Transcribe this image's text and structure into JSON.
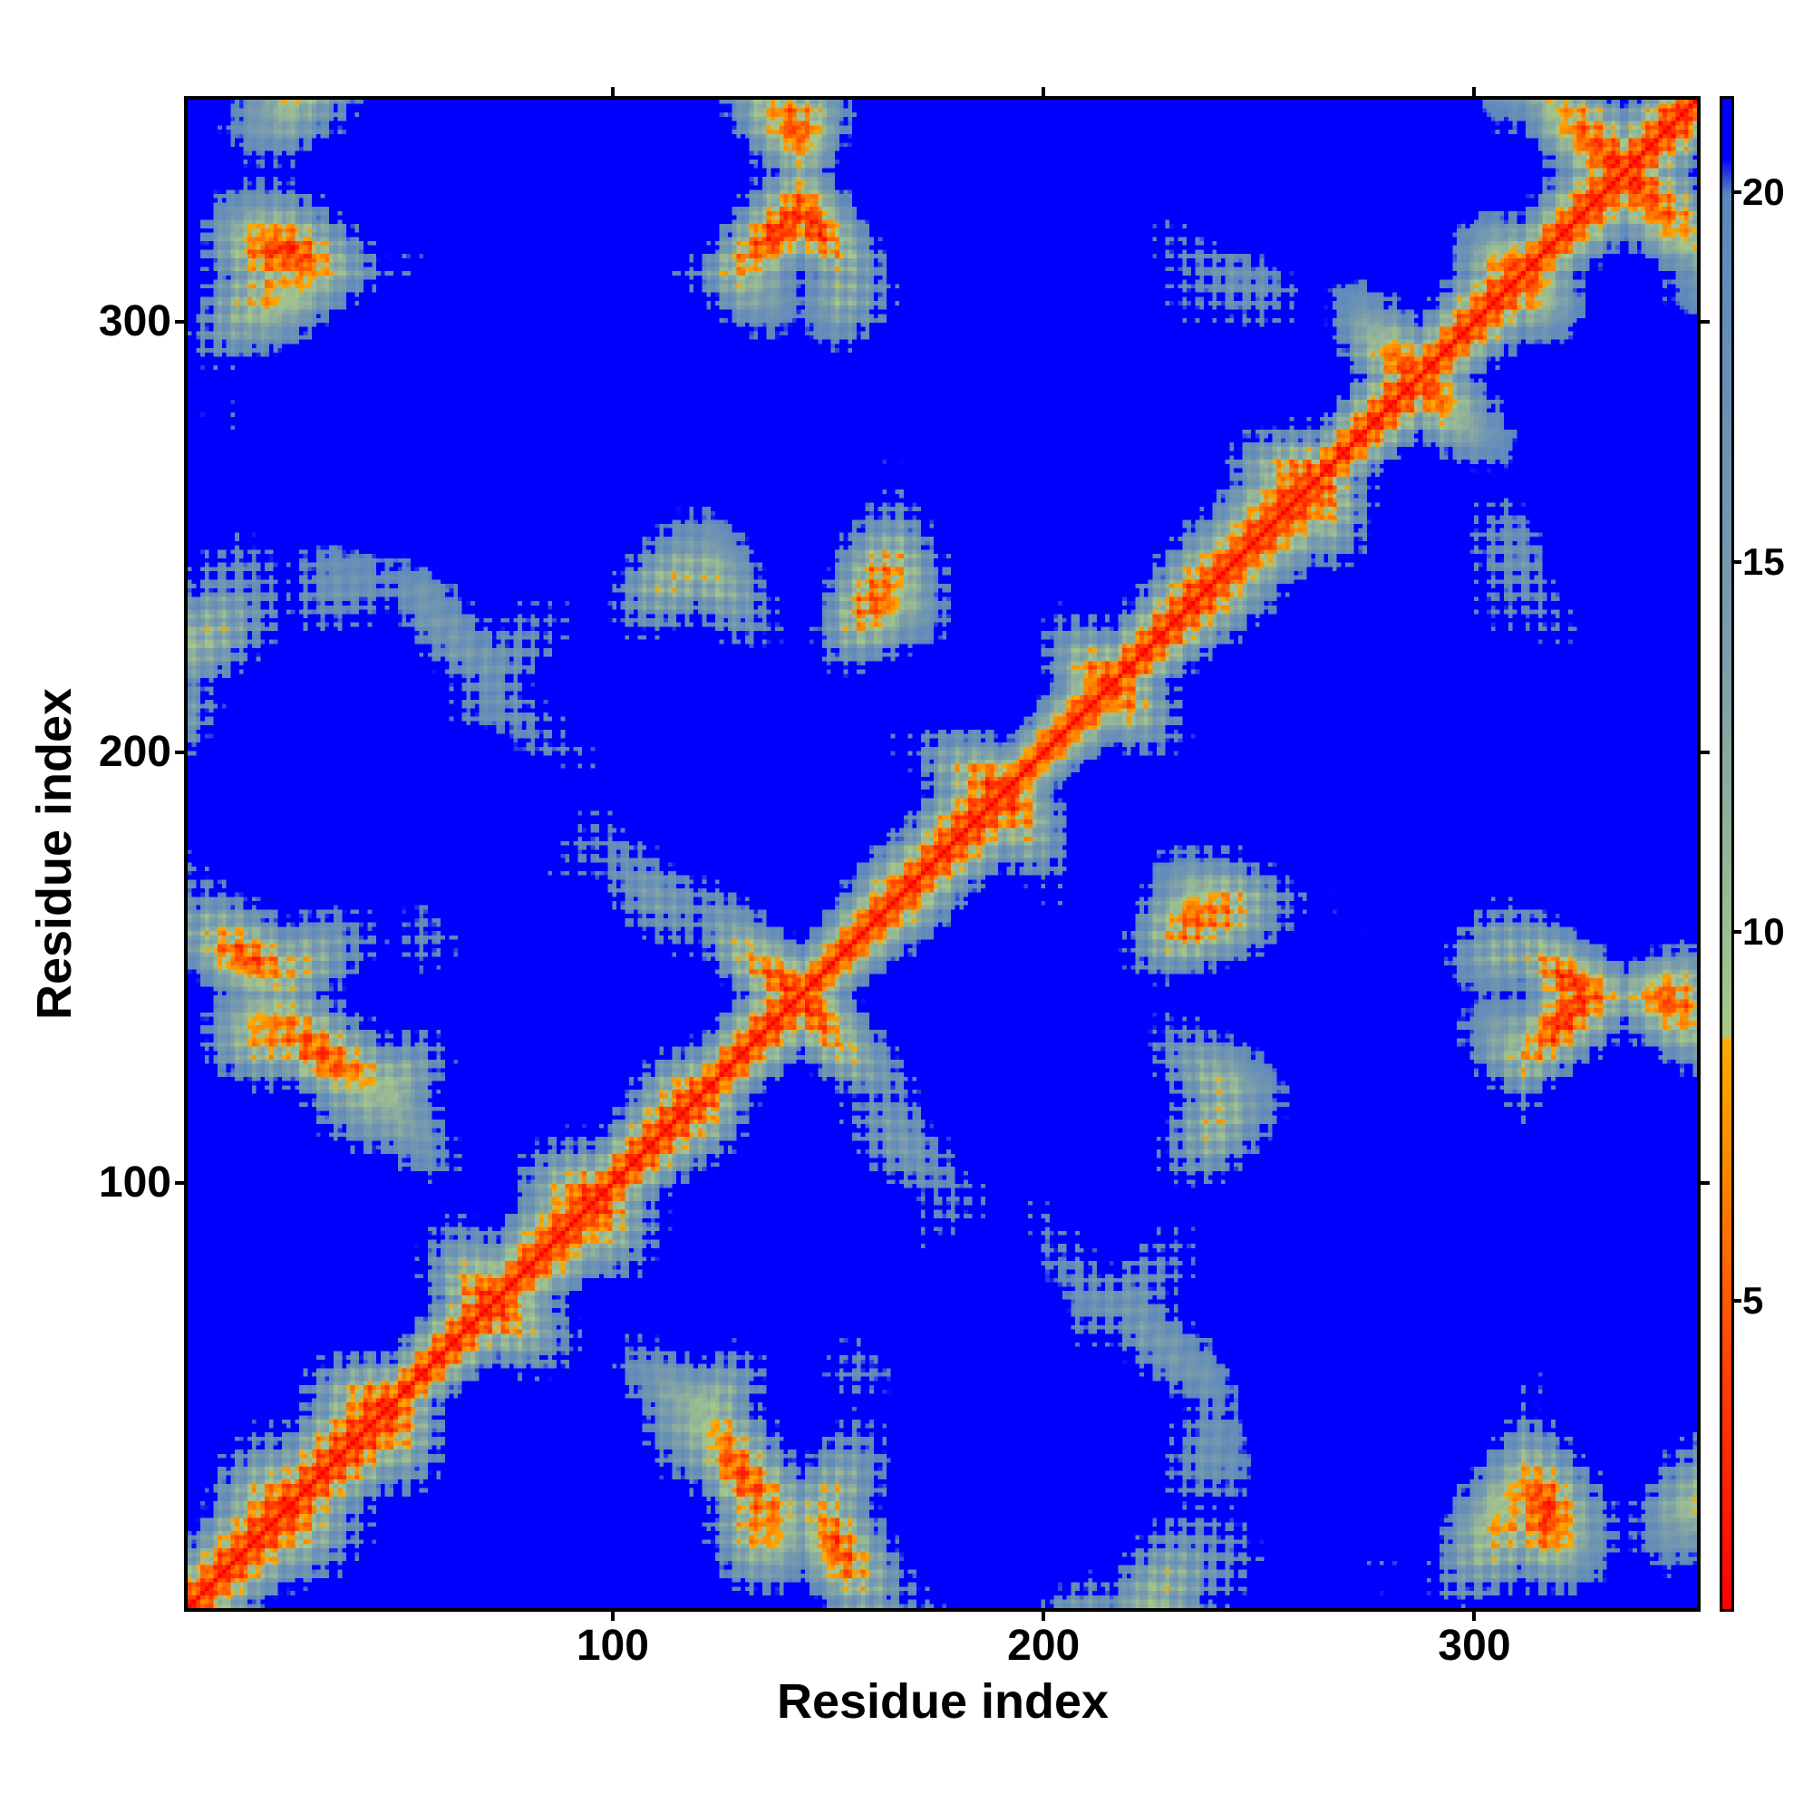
{
  "chart_data": {
    "type": "heatmap",
    "title": "",
    "xlabel": "Residue index",
    "ylabel": "Residue index",
    "xlim": [
      1,
      352
    ],
    "ylim": [
      1,
      352
    ],
    "xticks": [
      100,
      200,
      300
    ],
    "yticks": [
      100,
      200,
      300
    ],
    "colorbar": {
      "ticks": [
        5,
        10,
        15,
        20
      ],
      "range": [
        0.8,
        21.3
      ],
      "stops": [
        {
          "value": 0.8,
          "color": "#ff0000"
        },
        {
          "value": 4,
          "color": "#ff4000"
        },
        {
          "value": 7,
          "color": "#ff8c00"
        },
        {
          "value": 8.5,
          "color": "#ffaa00"
        },
        {
          "value": 8.6,
          "color": "#a8c888"
        },
        {
          "value": 14,
          "color": "#7a9cac"
        },
        {
          "value": 20,
          "color": "#5b87bd"
        },
        {
          "value": 20.5,
          "color": "#0000ff"
        },
        {
          "value": 21.3,
          "color": "#0000ff"
        }
      ]
    },
    "grid": false,
    "description_values": "symmetric residue-residue distance map; diagonal band values < 5, background > 20"
  }
}
